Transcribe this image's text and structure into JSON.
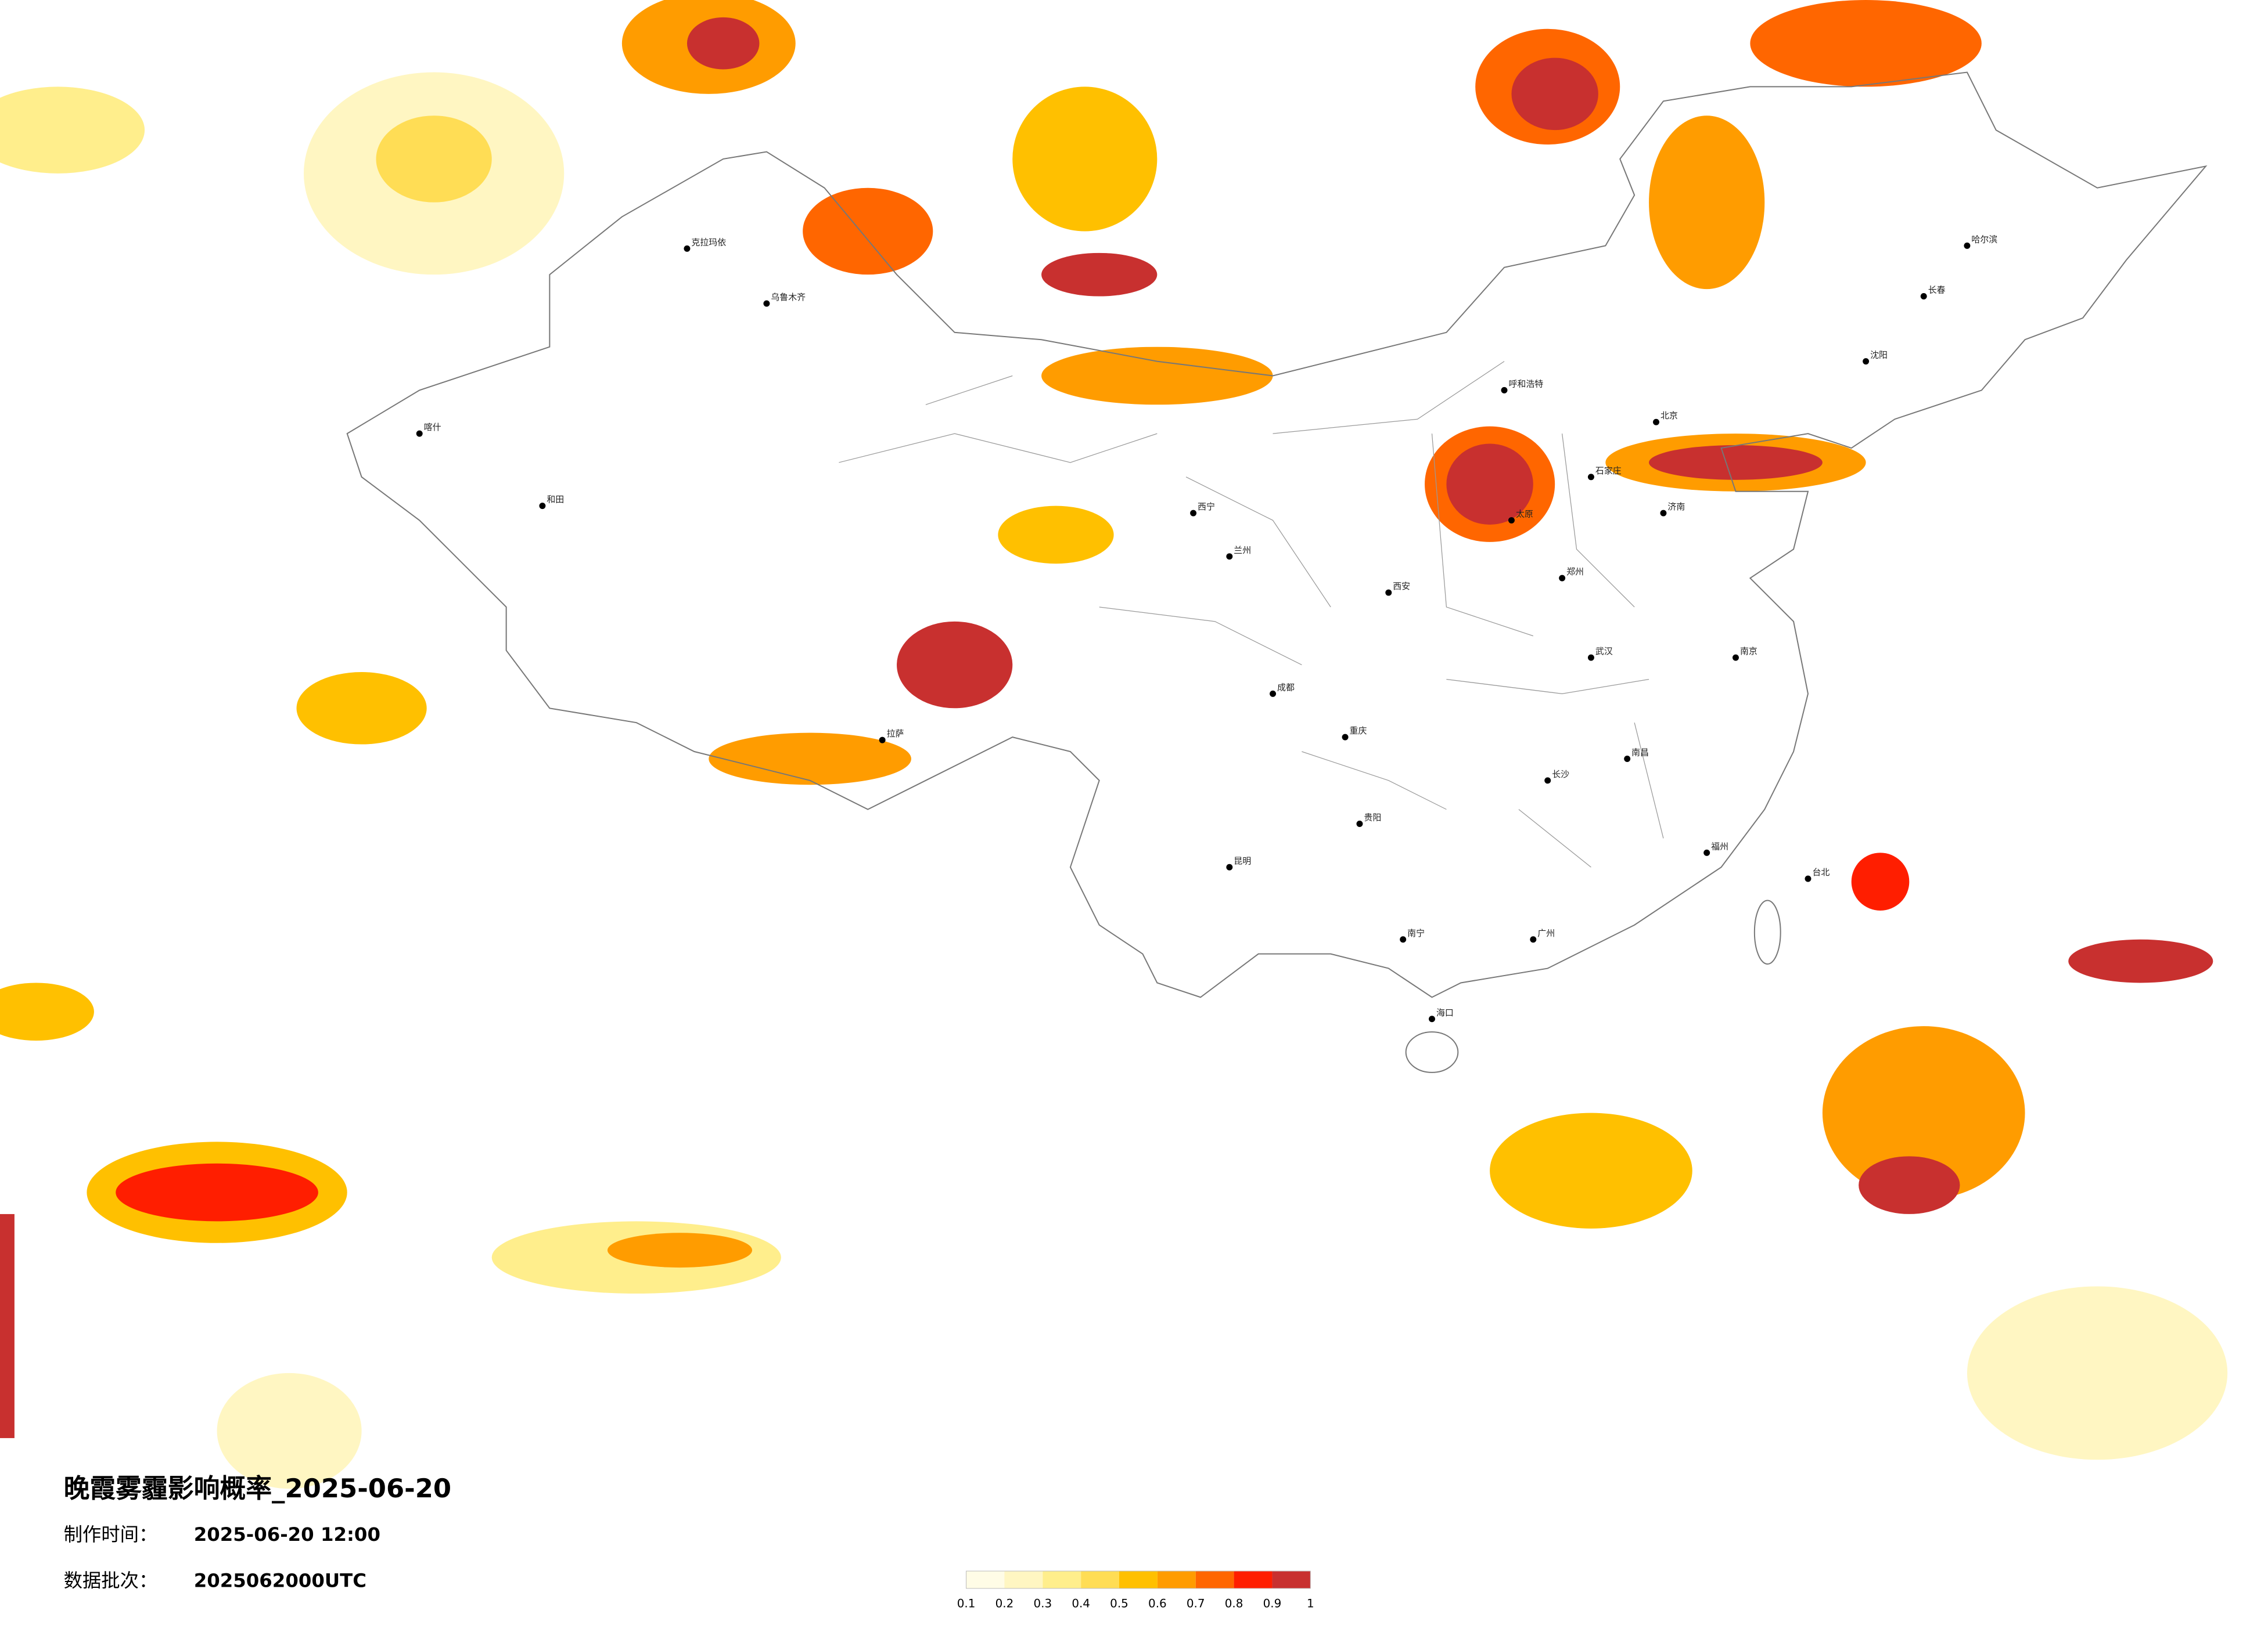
{
  "title": "晚霞雾霾影响概率_2025-06-20",
  "production_time": {
    "label": "制作时间：",
    "value": "2025-06-20 12:00"
  },
  "data_batch": {
    "label": "数据批次：",
    "value": "2025062000UTC"
  },
  "legend": {
    "colors": [
      "#fffce6",
      "#fff6c2",
      "#ffee8c",
      "#ffdd55",
      "#ffc000",
      "#ff9c00",
      "#ff6600",
      "#ff1e00",
      "#c8302f"
    ],
    "ticks": [
      0.1,
      0.2,
      0.3,
      0.4,
      0.5,
      0.6,
      0.7,
      0.8,
      0.9,
      1
    ]
  },
  "cities": [
    "克拉玛依",
    "乌鲁木齐",
    "喀什",
    "和田",
    "拉萨",
    "西宁",
    "兰州",
    "呼和浩特",
    "太原",
    "石家庄",
    "北京",
    "济南",
    "郑州",
    "西安",
    "成都",
    "重庆",
    "武汉",
    "长沙",
    "南昌",
    "南京",
    "贵阳",
    "昆明",
    "南宁",
    "广州",
    "海口",
    "哈尔滨",
    "长春",
    "沈阳",
    "福州",
    "台北"
  ]
}
